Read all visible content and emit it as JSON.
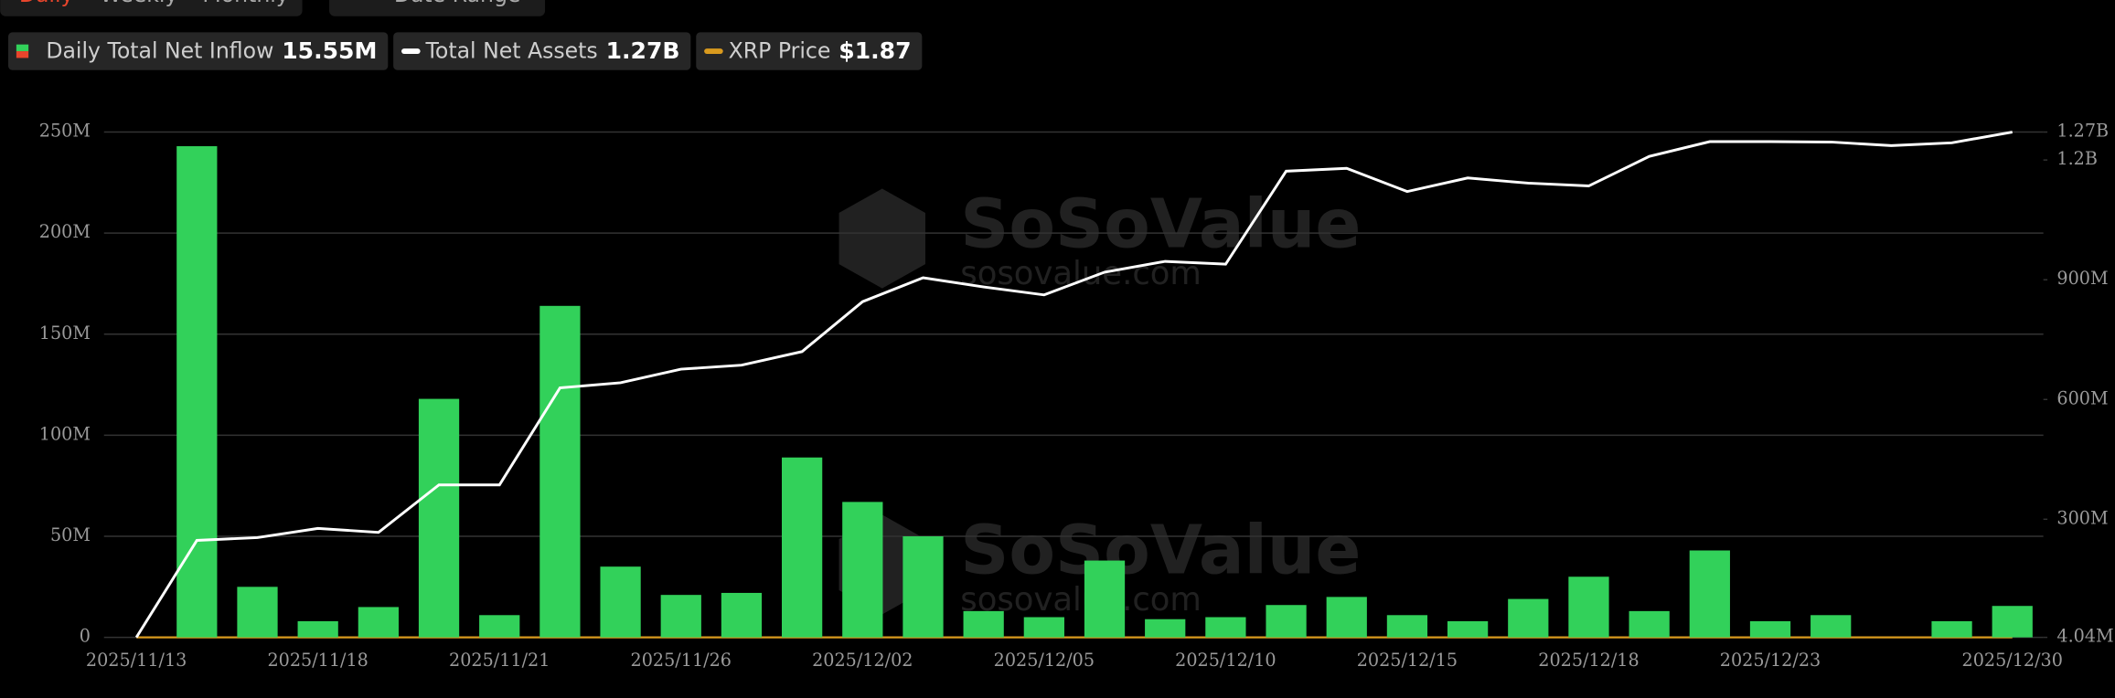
{
  "tabs": [
    "Daily",
    "Weekly",
    "Monthly"
  ],
  "date_range": "Date Range",
  "chart_data": {
    "type": "bar",
    "categories": [
      "2025/11/13",
      null,
      null,
      "2025/11/18",
      null,
      null,
      "2025/11/21",
      null,
      null,
      "2025/11/26",
      null,
      null,
      "2025/12/02",
      null,
      null,
      "2025/12/05",
      null,
      null,
      "2025/12/10",
      null,
      null,
      "2025/12/15",
      null,
      null,
      "2025/12/18",
      null,
      null,
      "2025/12/23",
      null,
      null,
      null,
      "2025/12/30"
    ],
    "series": [
      {
        "name": "Daily Total Net Inflow",
        "latest_label": "15.55M",
        "color": "#32d15a",
        "values": [
          0,
          243,
          25,
          8,
          15,
          118,
          11,
          164,
          35,
          21,
          22,
          89,
          67,
          50,
          13,
          10,
          38,
          9,
          10,
          16,
          20,
          11,
          8,
          19,
          30,
          13,
          43,
          8,
          11,
          0,
          8,
          15.55
        ]
      },
      {
        "name": "Total Net Assets",
        "latest_label": "1.27B",
        "color": "#ffffff",
        "axis": "y2",
        "type": "line",
        "values": [
          4.04,
          247,
          254,
          277,
          267,
          386,
          386,
          629,
          642,
          676,
          686,
          720,
          845,
          905,
          882,
          862,
          919,
          946,
          939,
          1172,
          1179,
          1121,
          1155,
          1142,
          1135,
          1209,
          1246,
          1246,
          1245,
          1236,
          1243,
          1270
        ]
      },
      {
        "name": "XRP Price",
        "latest_label": "$1.87",
        "color": "#d99a1e"
      }
    ],
    "ylim": [
      0,
      250
    ],
    "yticks": [
      0,
      {
        "value": 50,
        "label": "50M"
      },
      {
        "value": 100,
        "label": "100M"
      },
      {
        "value": 150,
        "label": "150M"
      },
      {
        "value": 200,
        "label": "200M"
      },
      {
        "value": 250,
        "label": "250M"
      }
    ],
    "y2lim": [
      4.04,
      1270
    ],
    "y2ticks": [
      {
        "value": 4.04,
        "label": "4.04M"
      },
      {
        "value": 300,
        "label": "300M"
      },
      {
        "value": 600,
        "label": "600M"
      },
      {
        "value": 900,
        "label": "900M"
      },
      {
        "value": 1200,
        "label": "1.2B"
      },
      {
        "value": 1270,
        "label": "1.27B"
      }
    ],
    "grid": true
  }
}
